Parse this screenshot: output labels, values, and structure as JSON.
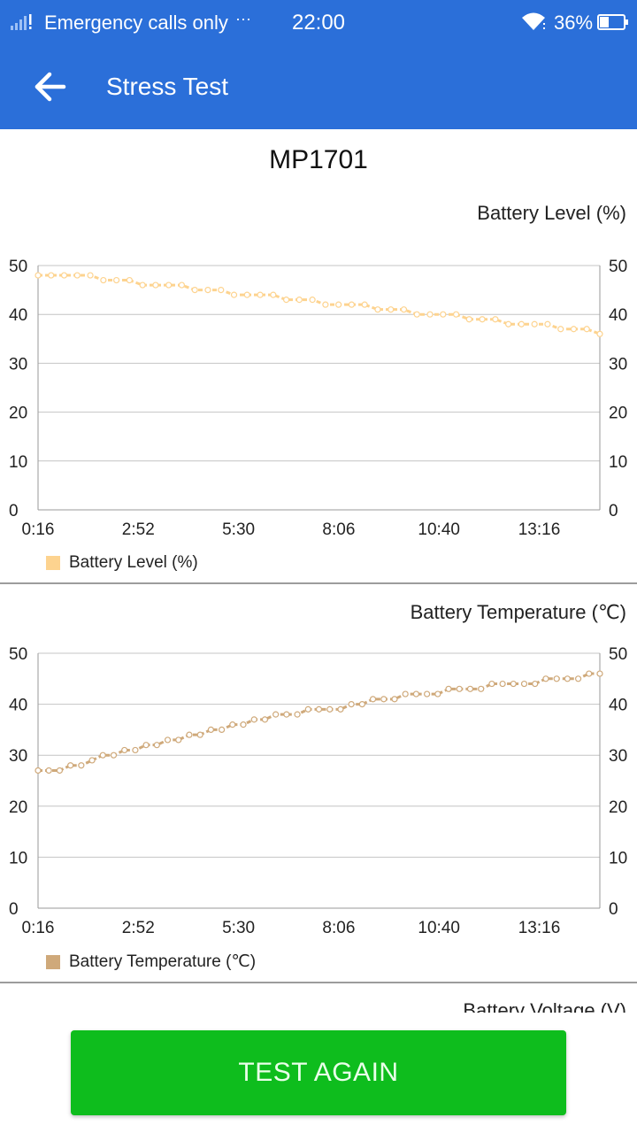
{
  "status_bar": {
    "carrier": "Emergency calls only",
    "more": "···",
    "time": "22:00",
    "battery_percent": "36%",
    "icons": [
      "signal-icon",
      "wifi-icon",
      "battery-icon"
    ]
  },
  "app_bar": {
    "title": "Stress Test",
    "back_icon": "arrow-left-icon"
  },
  "device": {
    "name": "MP1701"
  },
  "colors": {
    "primary": "#2b6fd9",
    "button": "#0ebd1d",
    "battery_level": "#fdd38f",
    "battery_temperature": "#cfa97a"
  },
  "chart_data": [
    {
      "type": "line",
      "title": "Battery Level (%)",
      "legend": "top-left below chart",
      "series": [
        {
          "name": "Battery Level (%)",
          "values": [
            48,
            48,
            48,
            48,
            48,
            47,
            47,
            47,
            46,
            46,
            46,
            46,
            45,
            45,
            45,
            44,
            44,
            44,
            44,
            43,
            43,
            43,
            42,
            42,
            42,
            42,
            41,
            41,
            41,
            40,
            40,
            40,
            40,
            39,
            39,
            39,
            38,
            38,
            38,
            38,
            37,
            37,
            37,
            36
          ]
        }
      ],
      "x_tick_labels": [
        "0:16",
        "2:52",
        "5:30",
        "8:06",
        "10:40",
        "13:16"
      ],
      "y_ticks": [
        0,
        10,
        20,
        30,
        40,
        50
      ],
      "ylim": [
        0,
        50
      ],
      "grid": true
    },
    {
      "type": "line",
      "title": "Battery Temperature (℃)",
      "legend": "top-left below chart",
      "series": [
        {
          "name": "Battery Temperature (℃)",
          "values": [
            27,
            27,
            27,
            28,
            28,
            29,
            30,
            30,
            31,
            31,
            32,
            32,
            33,
            33,
            34,
            34,
            35,
            35,
            36,
            36,
            37,
            37,
            38,
            38,
            38,
            39,
            39,
            39,
            39,
            40,
            40,
            41,
            41,
            41,
            42,
            42,
            42,
            42,
            43,
            43,
            43,
            43,
            44,
            44,
            44,
            44,
            44,
            45,
            45,
            45,
            45,
            46,
            46
          ]
        }
      ],
      "x_tick_labels": [
        "0:16",
        "2:52",
        "5:30",
        "8:06",
        "10:40",
        "13:16"
      ],
      "y_ticks": [
        0,
        10,
        20,
        30,
        40,
        50
      ],
      "ylim": [
        0,
        50
      ],
      "grid": true
    }
  ],
  "next_chart_title": "Battery Voltage (V)",
  "actions": {
    "test_again": "TEST AGAIN"
  }
}
